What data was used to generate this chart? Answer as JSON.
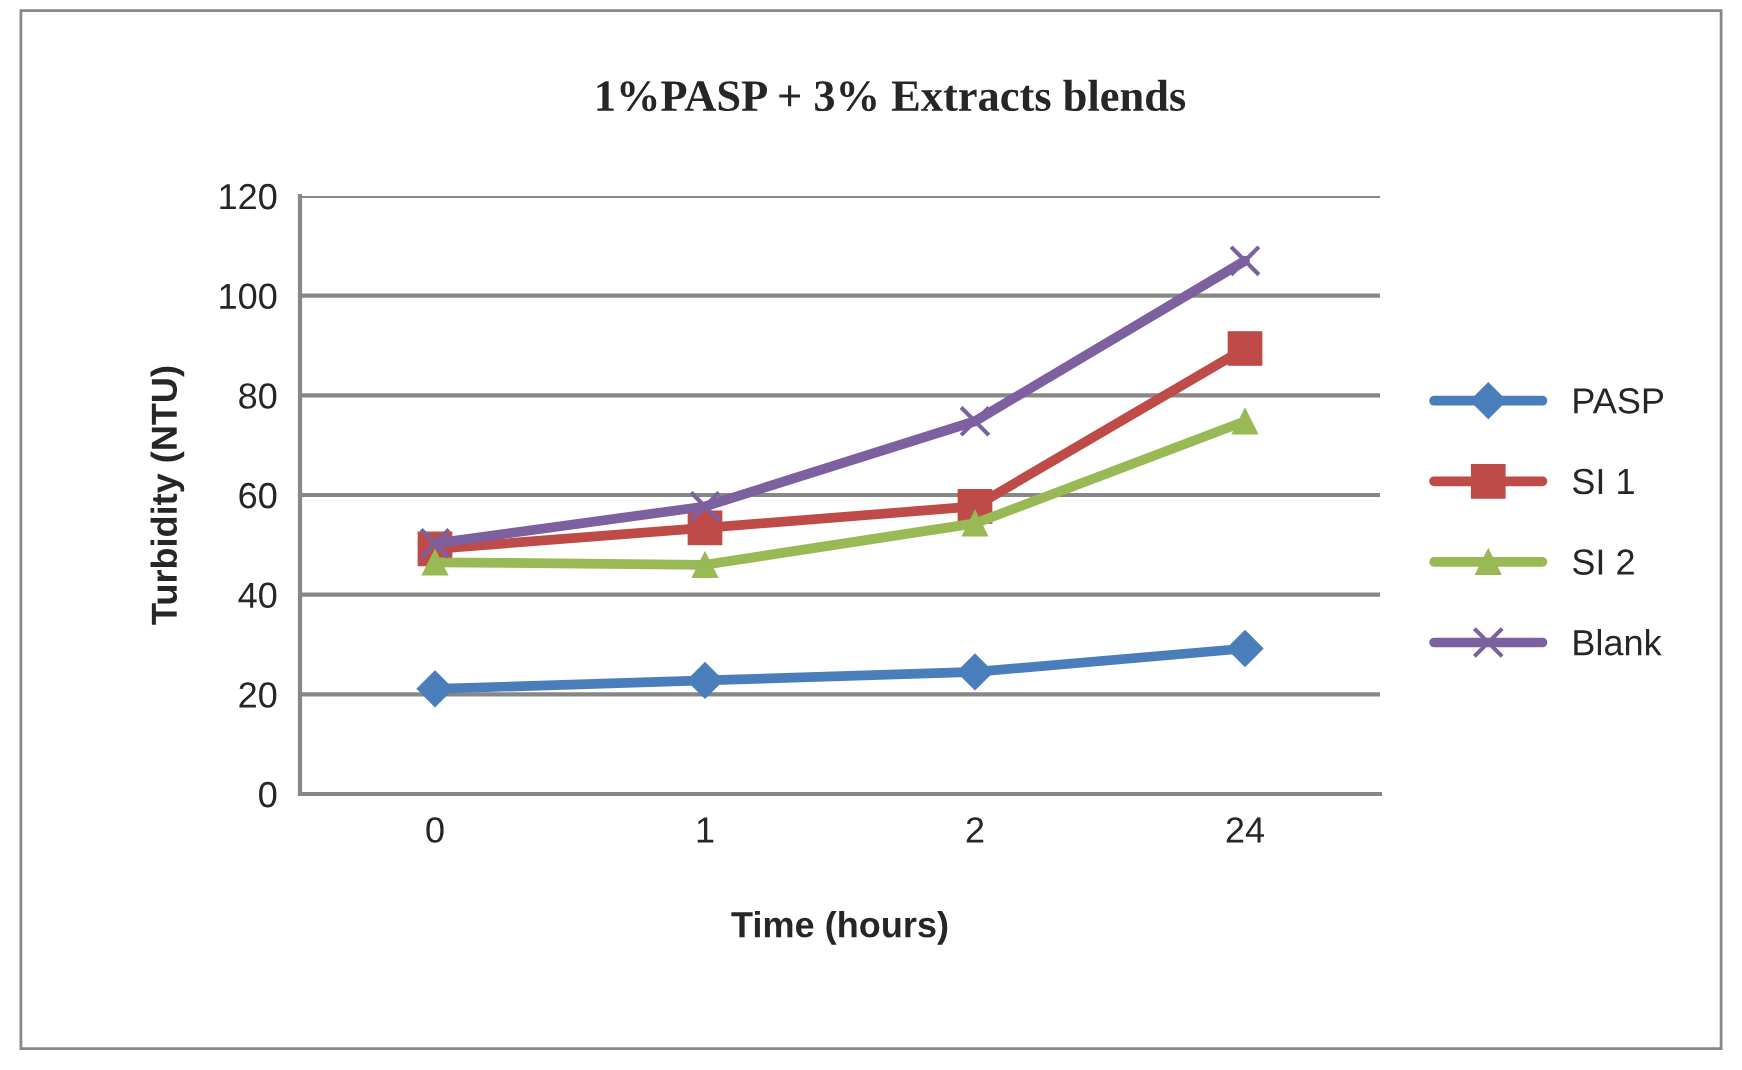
{
  "chart_data": {
    "type": "line",
    "title": "1%PASP + 3% Extracts blends",
    "xlabel": "Time (hours)",
    "ylabel": "Turbidity (NTU)",
    "categories": [
      "0",
      "1",
      "2",
      "24"
    ],
    "series": [
      {
        "name": "PASP",
        "color": "#4a7ebb",
        "marker": "diamond",
        "values": [
          21.1,
          22.8,
          24.5,
          29.2
        ]
      },
      {
        "name": "SI 1",
        "color": "#be4b48",
        "marker": "square",
        "values": [
          49.2,
          53.4,
          57.7,
          89.4
        ]
      },
      {
        "name": "SI 2",
        "color": "#98b954",
        "marker": "triangle",
        "values": [
          46.5,
          46,
          54.3,
          74.8
        ]
      },
      {
        "name": "Blank",
        "color": "#7d60a0",
        "marker": "cross",
        "values": [
          50.3,
          57.7,
          74.8,
          107
        ]
      }
    ],
    "ylim": [
      0,
      120
    ],
    "yticks": [
      0,
      20,
      40,
      60,
      80,
      100,
      120
    ],
    "grid": "y",
    "legend": "right",
    "line_style": "solid"
  }
}
